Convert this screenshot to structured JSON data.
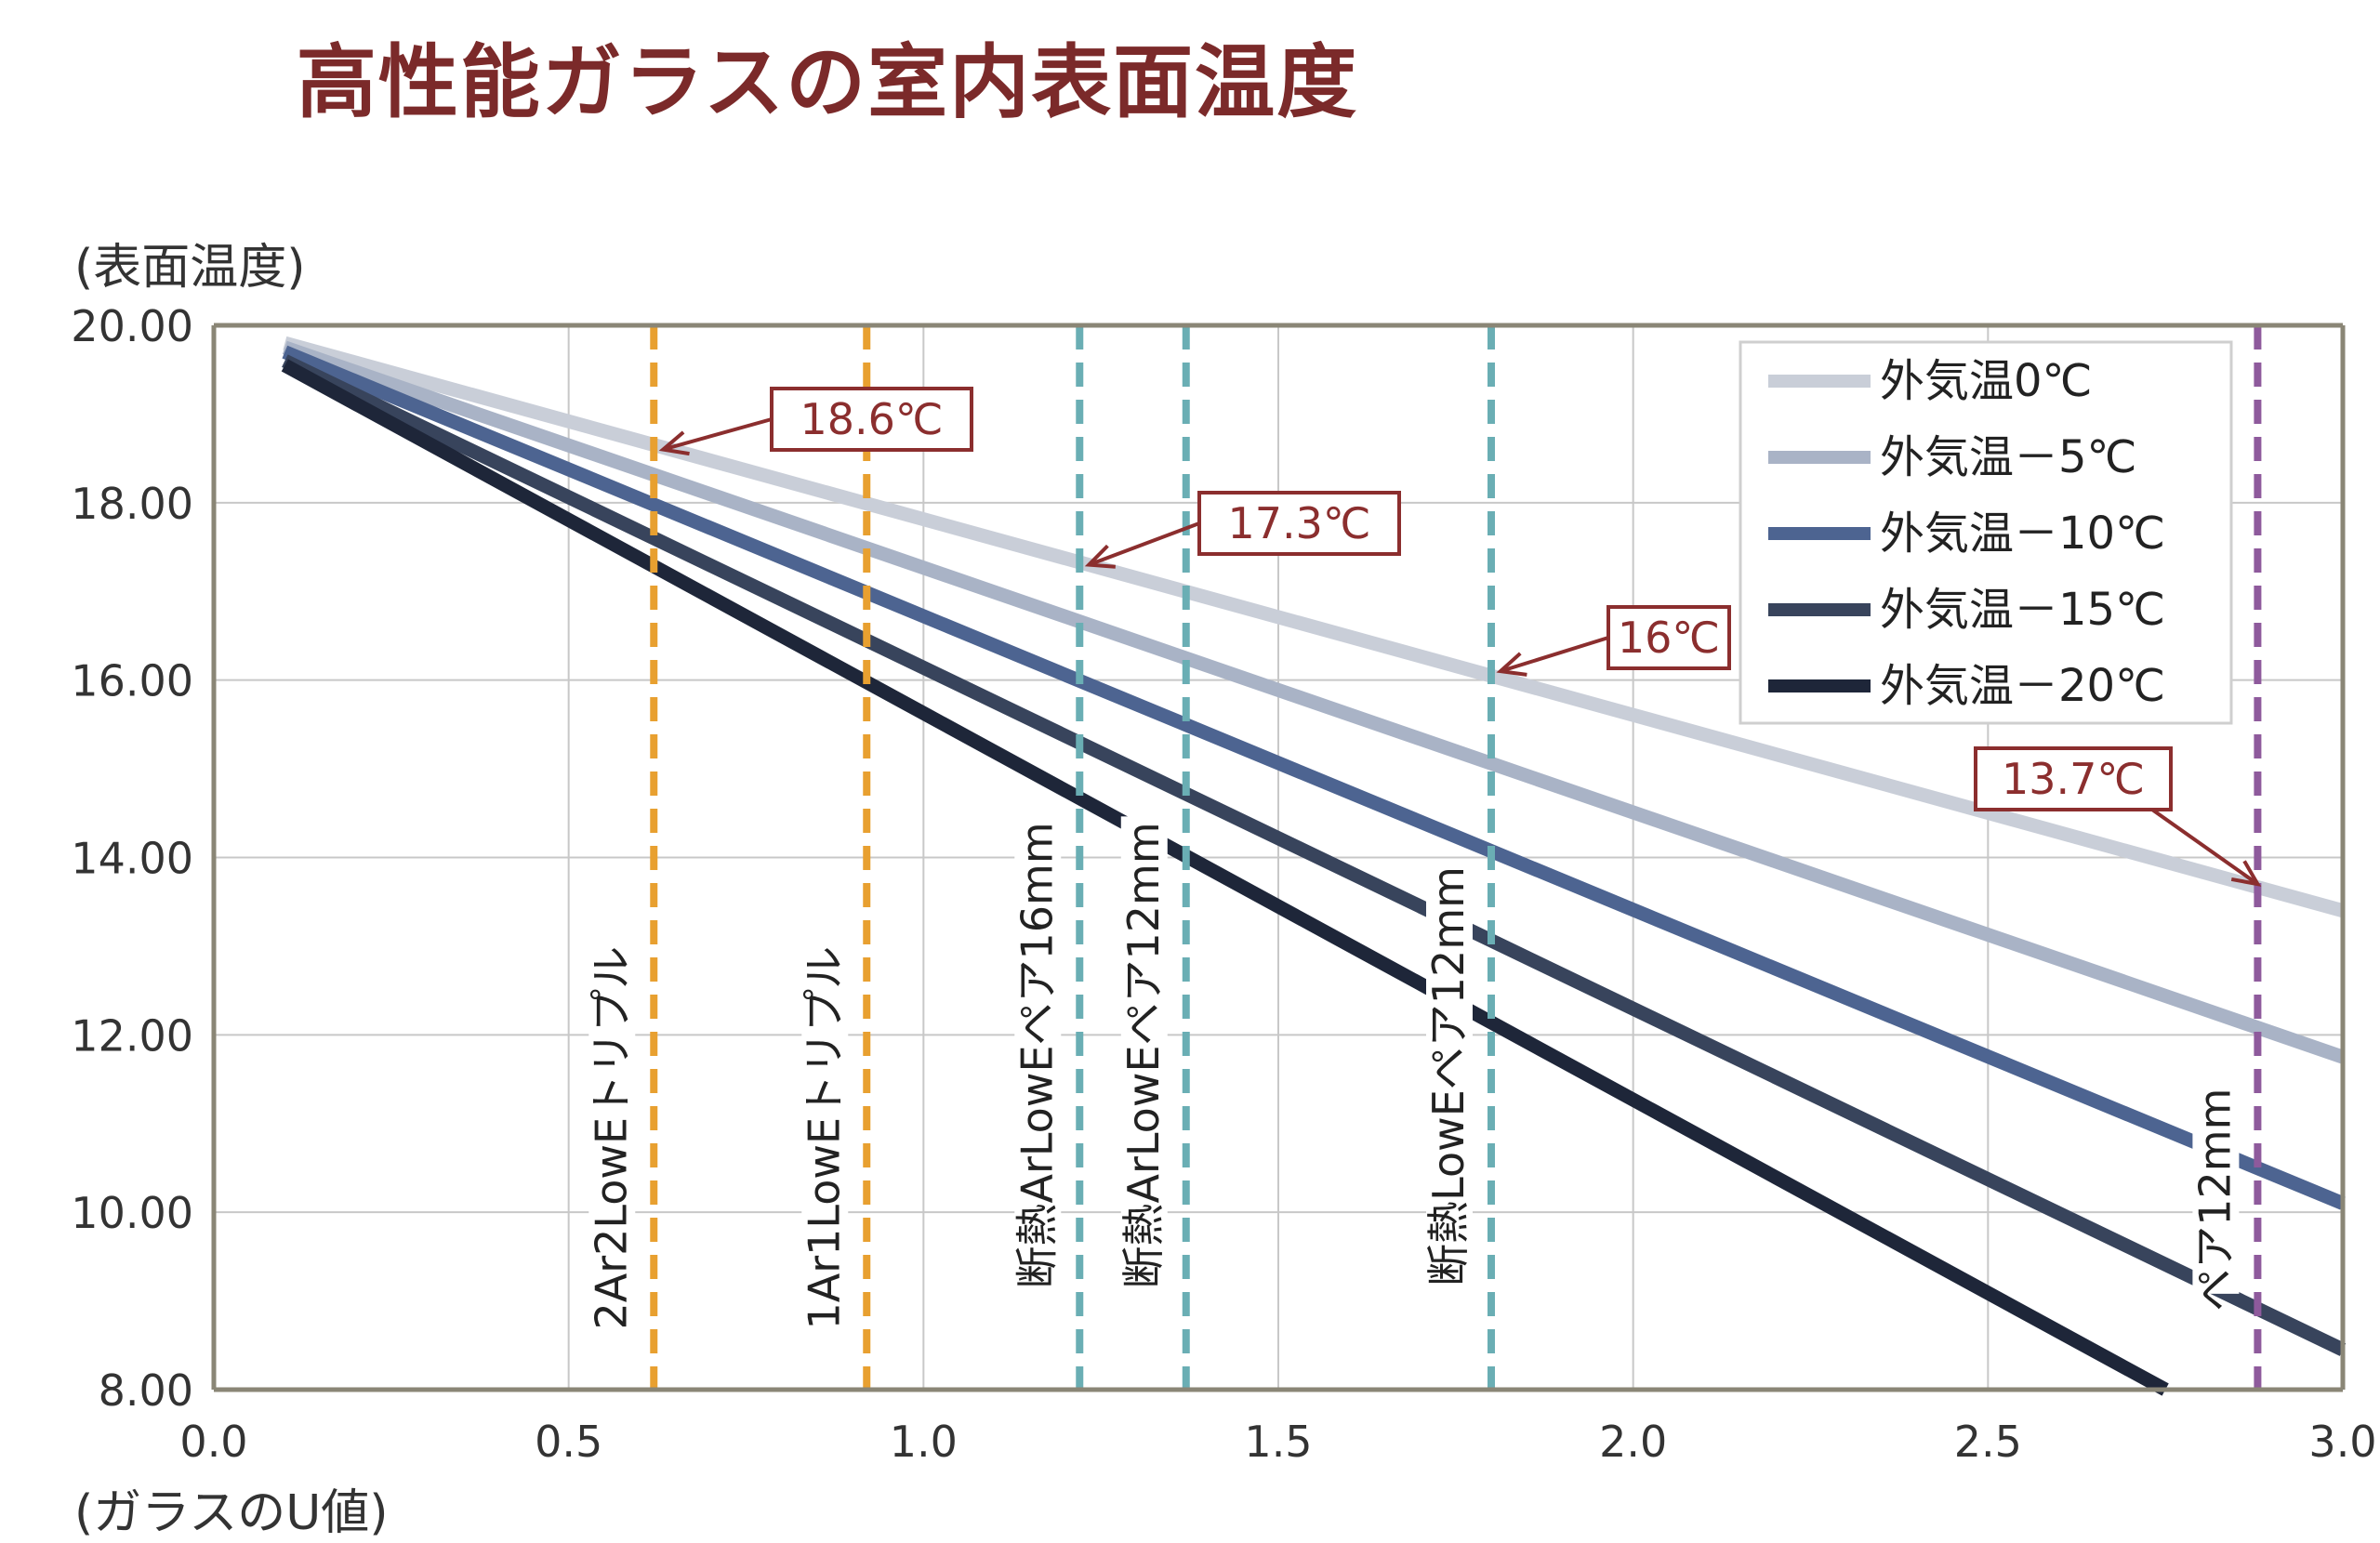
{
  "chart_data": {
    "type": "line",
    "title": "高性能ガラスの室内表面温度",
    "xlabel": "(ガラスのU値)",
    "ylabel": "(表面温度)",
    "xlim": [
      0.0,
      3.0
    ],
    "ylim": [
      8.0,
      20.0
    ],
    "x_ticks": [
      "0.0",
      "0.5",
      "1.0",
      "1.5",
      "2.0",
      "2.5",
      "3.0"
    ],
    "y_ticks": [
      "8.00",
      "10.00",
      "12.00",
      "14.00",
      "16.00",
      "18.00",
      "20.00"
    ],
    "grid": true,
    "legend_position": "top-right",
    "series": [
      {
        "name": "外気温0℃",
        "color": "#c9ced8",
        "x": [
          0.1,
          3.0
        ],
        "y": [
          19.8,
          13.4
        ]
      },
      {
        "name": "外気温－5℃",
        "color": "#a9b3c6",
        "x": [
          0.1,
          3.0
        ],
        "y": [
          19.75,
          11.75
        ]
      },
      {
        "name": "外気温－10℃",
        "color": "#4d6491",
        "x": [
          0.1,
          3.0
        ],
        "y": [
          19.7,
          10.1
        ]
      },
      {
        "name": "外気温－15℃",
        "color": "#38445c",
        "x": [
          0.1,
          3.0
        ],
        "y": [
          19.6,
          8.45
        ]
      },
      {
        "name": "外気温－20℃",
        "color": "#1e2639",
        "x": [
          0.1,
          2.75
        ],
        "y": [
          19.55,
          8.0
        ]
      }
    ],
    "vertical_lines": [
      {
        "x": 0.62,
        "label": "2Ar2LowEトリプル",
        "color": "#e8a030",
        "label_y": 13.0
      },
      {
        "x": 0.92,
        "label": "1Ar1LowEトリプル",
        "color": "#e8a030",
        "label_y": 13.0
      },
      {
        "x": 1.22,
        "label": "断熱ArLowEペア16mm",
        "color": "#6aaeb4",
        "label_y": 14.4
      },
      {
        "x": 1.37,
        "label": "断熱ArLowEペア12mm",
        "color": "#6aaeb4",
        "label_y": 14.4
      },
      {
        "x": 1.8,
        "label": "断熱LowEペア12mm",
        "color": "#6aaeb4",
        "label_y": 13.9
      },
      {
        "x": 2.88,
        "label": "ペア12mm",
        "color": "#8e5a9c",
        "label_y": 11.4
      }
    ],
    "annotations": [
      {
        "text": "18.6℃",
        "x": 0.62,
        "y": 18.6
      },
      {
        "text": "17.3℃",
        "x": 1.22,
        "y": 17.3
      },
      {
        "text": "16℃",
        "x": 1.8,
        "y": 16.1
      },
      {
        "text": "13.7℃",
        "x": 2.88,
        "y": 13.7
      }
    ],
    "annotation_color": "#8b2e2e"
  }
}
